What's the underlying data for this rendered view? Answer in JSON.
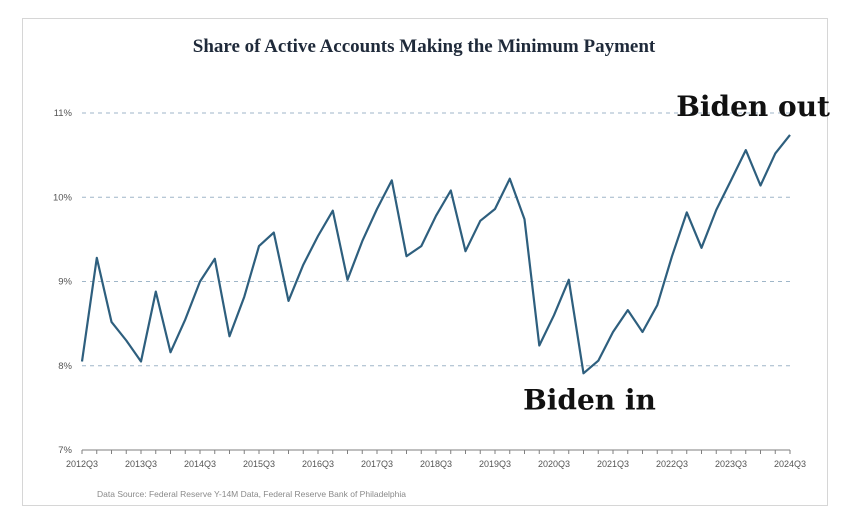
{
  "chart_data": {
    "type": "line",
    "title": "Share of Active Accounts Making the Minimum Payment",
    "xlabel": "",
    "ylabel": "",
    "ylim": [
      7,
      11
    ],
    "yticks": [
      "7%",
      "8%",
      "9%",
      "10%",
      "11%"
    ],
    "ytick_values": [
      7,
      8,
      9,
      10,
      11
    ],
    "xticks": [
      "2012Q3",
      "2013Q3",
      "2014Q3",
      "2015Q3",
      "2016Q3",
      "2017Q3",
      "2018Q3",
      "2019Q3",
      "2020Q3",
      "2021Q3",
      "2022Q3",
      "2023Q3",
      "2024Q3"
    ],
    "grid": "horizontal dashed",
    "x": [
      "2012Q3",
      "2012Q4",
      "2013Q1",
      "2013Q2",
      "2013Q3",
      "2013Q4",
      "2014Q1",
      "2014Q2",
      "2014Q3",
      "2014Q4",
      "2015Q1",
      "2015Q2",
      "2015Q3",
      "2015Q4",
      "2016Q1",
      "2016Q2",
      "2016Q3",
      "2016Q4",
      "2017Q1",
      "2017Q2",
      "2017Q3",
      "2017Q4",
      "2018Q1",
      "2018Q2",
      "2018Q3",
      "2018Q4",
      "2019Q1",
      "2019Q2",
      "2019Q3",
      "2019Q4",
      "2020Q1",
      "2020Q2",
      "2020Q3",
      "2020Q4",
      "2021Q1",
      "2021Q2",
      "2021Q3",
      "2021Q4",
      "2022Q1",
      "2022Q2",
      "2022Q3",
      "2022Q4",
      "2023Q1",
      "2023Q2",
      "2023Q3",
      "2023Q4",
      "2024Q1",
      "2024Q2",
      "2024Q3"
    ],
    "series": [
      {
        "name": "",
        "color": "#2e5f7e",
        "values": [
          8.05,
          9.28,
          8.52,
          8.3,
          8.05,
          8.88,
          8.16,
          8.55,
          9.0,
          9.27,
          8.35,
          8.82,
          9.42,
          9.58,
          8.77,
          9.2,
          9.54,
          9.84,
          9.02,
          9.48,
          9.86,
          10.2,
          9.3,
          9.42,
          9.78,
          10.08,
          9.36,
          9.72,
          9.86,
          10.22,
          9.74,
          8.24,
          8.6,
          9.02,
          7.91,
          8.06,
          8.4,
          8.66,
          8.4,
          8.72,
          9.3,
          9.82,
          9.4,
          9.85,
          10.2,
          10.56,
          10.14,
          10.52,
          10.74
        ]
      }
    ],
    "annotations": [
      {
        "text": "Biden in",
        "at": "2021Q1"
      },
      {
        "text": "Biden out",
        "at": "2024Q3"
      }
    ]
  },
  "footer": {
    "source": "Data Source: Federal Reserve Y-14M Data, Federal Reserve Bank of Philadelphia"
  }
}
